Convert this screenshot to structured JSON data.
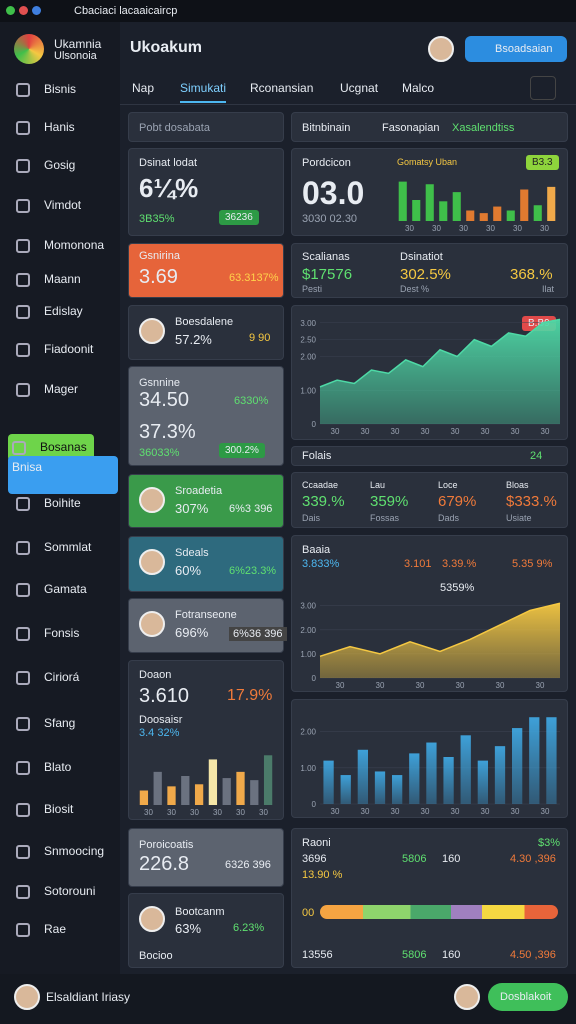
{
  "window": {
    "title": "Cbaciaci lacaaicaircp"
  },
  "brand": {
    "name": "Ukamnia",
    "sub": "Ulsonoia"
  },
  "header": {
    "title": "Ukoakum",
    "button": "Bsoadsaian"
  },
  "tabs": [
    "Nap",
    "Simukati",
    "Rconansian",
    "Ucgnat",
    "Malco"
  ],
  "sidebar": [
    "Bisnis",
    "Hanis",
    "Gosig",
    "Vimdot",
    "Momonona",
    "Maann",
    "Edislay",
    "Fiadoonit",
    "Mager",
    "Bosanas",
    "Bnisa",
    "Boihite",
    "Sommlat",
    "Gamata",
    "Fonsis",
    "Ciriorá",
    "Sfang",
    "Blato",
    "Biosit",
    "Snmoocing",
    "Sotorouni",
    "Rae"
  ],
  "footer": {
    "user": "Elsaldiant Iriasy",
    "button": "Dosblakoit"
  },
  "left": {
    "c1": {
      "label": "Dsinat lodat",
      "big": "6¼%",
      "sub": "3B35%",
      "badge": "36236"
    },
    "c2": {
      "label": "Gsnirina",
      "big": "3.69",
      "right": "63.3137%"
    },
    "c3": {
      "label": "Boesdalene",
      "value": "57.2%",
      "right": "9 90"
    },
    "c4": {
      "label": "Gsnnine",
      "big": "34.50",
      "right": "6330%",
      "big2": "37.3%",
      "sub": "36033%",
      "badge": "300.2%"
    },
    "c5": {
      "label": "Sroadetia",
      "value": "307%",
      "right": "6%3 396"
    },
    "c6": {
      "label": "Sdeals",
      "value": "60%",
      "right": "6%23.3%"
    },
    "c7": {
      "label": "Fotranseone",
      "value": "696%",
      "right": "6%36 396"
    },
    "c8": {
      "label": "Doaon",
      "big": "3.610",
      "right": "17.9%",
      "sub": "Doosaisr",
      "sub2": "3.4 32%",
      "chart": {
        "values": [
          0.7,
          1.6,
          0.9,
          1.4,
          1.0,
          2.2,
          1.3,
          1.6,
          1.2,
          2.4
        ],
        "colors": [
          "#f0a94a",
          "#6b7280",
          "#f0a94a",
          "#6b7280",
          "#f0a94a",
          "#f5e6a8",
          "#6b7280",
          "#f0a94a",
          "#6b7280",
          "#4b7b6a"
        ],
        "ylim": [
          0,
          2.8
        ],
        "xlabels": [
          "30",
          "30",
          "30",
          "30",
          "30",
          "30"
        ]
      }
    },
    "c9": {
      "label": "Poroicoatis",
      "big": "226.8",
      "right": "6326 396"
    },
    "c10": {
      "label": "Bootcanm",
      "value": "63%",
      "right": "6.23%",
      "foot": "Bocioo"
    }
  },
  "right": {
    "bar": {
      "left": "Bitnbinain",
      "mid": "Fasonapian",
      "right": "Xasalendtiss"
    },
    "r1": {
      "label": "Pordcicon",
      "big": "03.0",
      "sub": "3030 02.30",
      "legend": "Gomatsy Uban",
      "badge": "B3.3",
      "chart": {
        "values": [
          3.0,
          1.6,
          2.8,
          1.5,
          2.2,
          0.8,
          0.6,
          1.1,
          0.8,
          2.4,
          1.2,
          2.6
        ],
        "colors": [
          "#3fbf4a",
          "#3fbf4a",
          "#3fbf4a",
          "#3fbf4a",
          "#3fbf4a",
          "#e07a30",
          "#e07a30",
          "#e07a30",
          "#3fbf4a",
          "#e07a30",
          "#3fbf4a",
          "#f0a94a"
        ],
        "ylim": [
          0,
          3.2
        ],
        "xlabels": [
          "30",
          "30",
          "30",
          "30",
          "30",
          "30"
        ]
      }
    },
    "r2": {
      "a": "Scalianas",
      "av": "$17576",
      "b": "Dsinatiot",
      "bv": "302.5%",
      "cv": "368.%",
      "as": "Pesti",
      "bs": "Dest %",
      "cs": "Ilat"
    },
    "r3": {
      "badge": "B.B9",
      "chart": {
        "values": [
          1.1,
          1.3,
          1.2,
          1.6,
          1.5,
          1.9,
          1.7,
          2.2,
          2.0,
          2.5,
          2.3,
          2.7,
          2.6,
          3.0,
          3.1
        ],
        "ylim": [
          0,
          3.2
        ],
        "yticks": [
          0,
          {
            "value": 1,
            "label": "1.00"
          },
          {
            "value": 2,
            "label": "2.00"
          },
          {
            "value": 2.5,
            "label": "2.50"
          },
          {
            "value": 3,
            "label": "3.00"
          }
        ],
        "xlabels": [
          "30",
          "30",
          "30",
          "30",
          "30",
          "30",
          "30",
          "30"
        ],
        "color": "#4ed9a6"
      }
    },
    "r4": {
      "label": "Folais",
      "right": "24"
    },
    "r5": {
      "stats": [
        "339.%",
        "359%",
        "679%",
        "$333.%"
      ],
      "labels": [
        "Ccaadae",
        "Lau",
        "Loce",
        "Bloas"
      ],
      "subs": [
        "Dais",
        "Fossas",
        "Dads",
        "Usiate"
      ]
    },
    "r6": {
      "label": "Baaia",
      "a": "3.833%",
      "b": "3.101",
      "c": "3.39.%",
      "d": "5.35 9%",
      "note": "5359%",
      "chart": {
        "values": [
          0.9,
          1.3,
          1.0,
          1.5,
          1.1,
          1.6,
          2.2,
          2.8,
          3.1
        ],
        "ylim": [
          0,
          3.4
        ],
        "yticks": [
          0,
          {
            "value": 1,
            "label": "1.00"
          },
          {
            "value": 2,
            "label": "2.00"
          },
          {
            "value": 3,
            "label": "3.00"
          }
        ],
        "xlabels": [
          "30",
          "30",
          "30",
          "30",
          "30",
          "30"
        ],
        "color": "#f5c842"
      }
    },
    "r7": {
      "chart": {
        "values": [
          1.2,
          0.8,
          1.5,
          0.9,
          0.8,
          1.4,
          1.7,
          1.3,
          1.9,
          1.2,
          1.6,
          2.1,
          2.4,
          2.4
        ],
        "ylim": [
          0,
          2.6
        ],
        "yticks": [
          0,
          {
            "value": 1,
            "label": "1.00"
          },
          {
            "value": 2,
            "label": "2.00"
          }
        ],
        "xlabels": [
          "30",
          "30",
          "30",
          "30",
          "30",
          "30",
          "30",
          "30"
        ],
        "color": "#3fa6e0"
      }
    },
    "r8": {
      "label": "Raoni",
      "tr": "$3%",
      "a": "3696",
      "b": "5806",
      "c": "160",
      "d": "4.30 ,396",
      "e": "13.90 %",
      "f": "00",
      "g": "13556",
      "h": "5806",
      "i": "160",
      "j": "4.50 ,396"
    }
  }
}
